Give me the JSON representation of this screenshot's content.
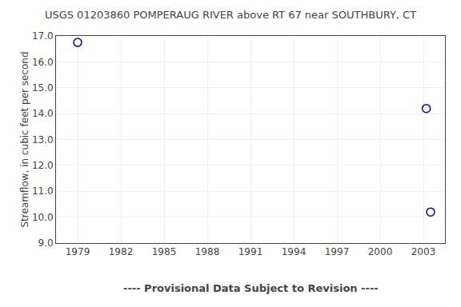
{
  "chart_data": {
    "type": "scatter",
    "title": "USGS 01203860 POMPERAUG RIVER above RT 67 near SOUTHBURY, CT",
    "ylabel": "Streamflow, in cubic feet per second",
    "annotations": [
      "---- Provisional Data Subject to Revision ----"
    ],
    "x": [
      1979.0,
      2003.2,
      2003.5
    ],
    "values": [
      16.75,
      14.2,
      10.2
    ],
    "color": "#0000bb",
    "marker": "circle-open",
    "xlim": [
      1977.5,
      2004.5
    ],
    "ylim": [
      9.0,
      17.0
    ],
    "xticks": [
      1979,
      1982,
      1985,
      1988,
      1991,
      1994,
      1997,
      2000,
      2003
    ],
    "yticks": [
      {
        "value": 9,
        "label": "9.0"
      },
      {
        "value": 10,
        "label": "10.0"
      },
      {
        "value": 11,
        "label": "11.0"
      },
      {
        "value": 12,
        "label": "12.0"
      },
      {
        "value": 13,
        "label": "13.0"
      },
      {
        "value": 14,
        "label": "14.0"
      },
      {
        "value": 15,
        "label": "15.0"
      },
      {
        "value": 16,
        "label": "16.0"
      },
      {
        "value": 17,
        "label": "17.0"
      }
    ],
    "grid": true
  }
}
